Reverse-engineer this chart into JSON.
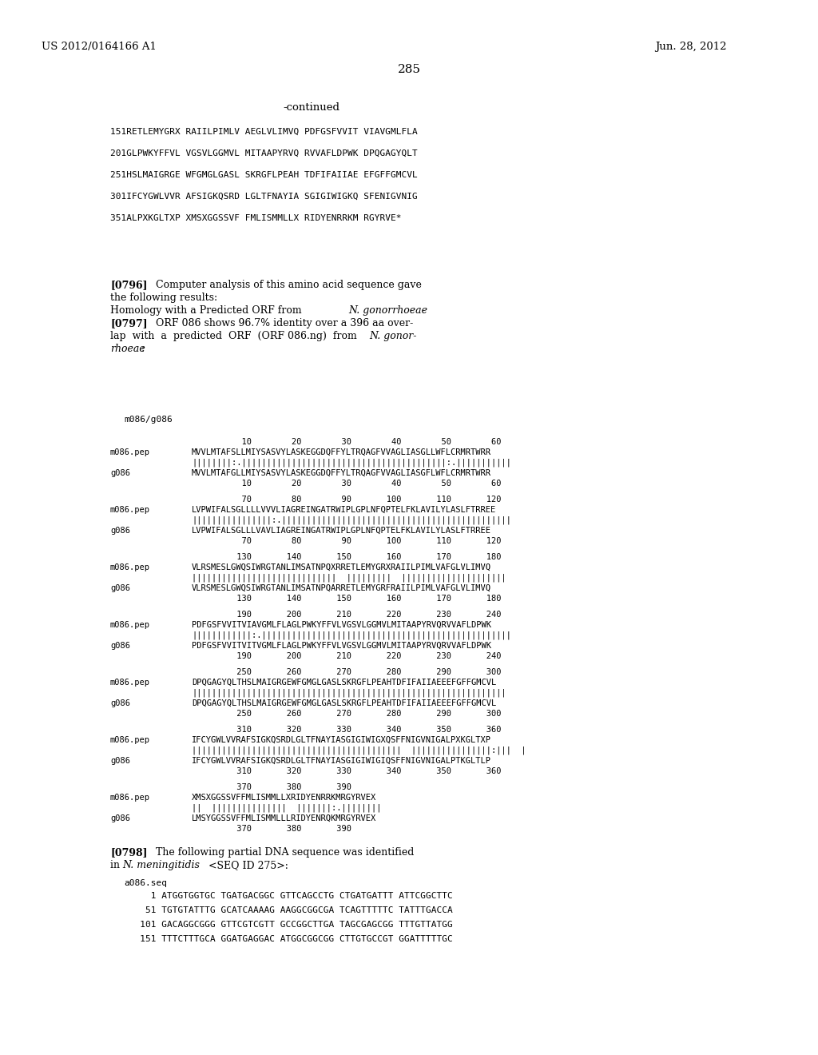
{
  "background_color": "#ffffff",
  "header_left": "US 2012/0164166 A1",
  "header_right": "Jun. 28, 2012",
  "page_number": "285",
  "continued": "-continued",
  "seq_lines": [
    "151RETLEMYGRX RAIILPIMLV AEGLVLIMVQ PDFGSFVVIT VIAVGMLFLA",
    "201GLPWKYFFVL VGSVLGGMVL MITAAPYRVQ RVVAFLDPWK DPQGAGYQLT",
    "251HSLMAIGRGE WFGMGLGASL SKRGFLPEAH TDFIFAIIAE EFGFFGMCVL",
    "301IFCYGWLVVR AFSIGKQSRD LGLTFNAYIA SGIGIWIGKQ SFENIGVNIG",
    "351ALPXKGLTXP XMSXGGSSVF FMLISMMLLX RIDYENRRKM RGYRVE*"
  ],
  "para_0796_lines": [
    {
      "text": "[0796]   Computer analysis of this amino acid sequence gave",
      "bold_prefix": "[0796]"
    },
    {
      "text": "the following results:",
      "bold_prefix": ""
    },
    {
      "text": "Homology with a Predicted ORF from N. gonorrhoeae",
      "bold_prefix": "",
      "italic_part": "N. gonorrhoeae"
    },
    {
      "text": "[0797]   ORF 086 shows 96.7% identity over a 396 aa over-",
      "bold_prefix": "[0797]"
    },
    {
      "text": "lap  with  a  predicted  ORF  (ORF 086.ng)  from  N. gonor-",
      "bold_prefix": "",
      "italic_part": "N. gonor-"
    },
    {
      "text": "rhoeae:",
      "bold_prefix": "",
      "italic_part": "rhoeae"
    }
  ],
  "align_label": "m086/g086",
  "align_blocks": [
    {
      "nums_top": "          10        20        30        40        50        60",
      "label1": "m086.pep",
      "seq1": "MVVLMTAFSLLMIYSASVYLASKEGGDQFFYLTRQAGFVVAGLIASGLLWFLCRMRTWRR",
      "match": "||||||||:.|||||||||||||||||||||||||||||||||||||||||:.|||||||||||",
      "label2": "g086",
      "seq2": "MVVLMTAFGLLMIYSASVYLASKEGGDQFFYLTRQAGFVVAGLIASGFLWFLCRMRTWRR",
      "nums_bot": "          10        20        30        40        50        60"
    },
    {
      "nums_top": "          70        80        90       100       110       120",
      "label1": "m086.pep",
      "seq1": "LVPWIFALSGLLLLVVVLIAGREINGATRWIPLGPLNFQPTELFKLAVILYLASLFTRREE",
      "match": "||||||||||||||||:.||||||||||||||||||||||||||||||||||||||||||||||",
      "label2": "g086",
      "seq2": "LVPWIFALSGLLLVAVLIAGREINGATRWIPLGPLNFQPTELFKLAVILYLASLFTRREE",
      "nums_bot": "          70        80        90       100       110       120"
    },
    {
      "nums_top": "         130       140       150       160       170       180",
      "label1": "m086.pep",
      "seq1": "VLRSMESLGWQSIWRGTANLIMSATNPQXRRETLEMYGRXRAIILPIMLVAFGLVLIMVQ",
      "match": "|||||||||||||||||||||||||||||  |||||||||  |||||||||||||||||||||",
      "label2": "g086",
      "seq2": "VLRSMESLGWQSIWRGTANLIMSATNPQARRETLEMYGRFRAIILPIMLVAFGLVLIMVQ",
      "nums_bot": "         130       140       150       160       170       180"
    },
    {
      "nums_top": "         190       200       210       220       230       240",
      "label1": "m086.pep",
      "seq1": "PDFGSFVVITVIAVGMLFLAGLPWKYFFVLVGSVLGGMVLMITAAPYRVQRVVAFLDPWK",
      "match": "||||||||||||:.||||||||||||||||||||||||||||||||||||||||||||||||||",
      "label2": "g086",
      "seq2": "PDFGSFVVITVITVGMLFLAGLPWKYFFVLVGSVLGGMVLMITAAPYRVQRVVAFLDPWK",
      "nums_bot": "         190       200       210       220       230       240"
    },
    {
      "nums_top": "         250       260       270       280       290       300",
      "label1": "m086.pep",
      "seq1": "DPQGAGYQLTHSLMAIGRGEWFGMGLGASLSKRGFLPEAHTDFIFAIIAEEEFGFFGMCVL",
      "match": "|||||||||||||||||||||||||||||||||||||||||||||||||||||||||||||||",
      "label2": "g086",
      "seq2": "DPQGAGYQLTHSLMAIGRGEWFGMGLGASLSKRGFLPEAHTDFIFAIIAEEEFGFFGMCVL",
      "nums_bot": "         250       260       270       280       290       300"
    },
    {
      "nums_top": "         310       320       330       340       350       360",
      "label1": "m086.pep",
      "seq1": "IFCYGWLVVRAFSIGKQSRDLGLTFNAYIASGIGIWIGXQSFFNIGVNIGALPXKGLTXP",
      "match": "||||||||||||||||||||||||||||||||||||||||||  ||||||||||||||||:|||  |",
      "label2": "g086",
      "seq2": "IFCYGWLVVRAFSIGKQSRDLGLTFNAYIASGIGIWIGIQSFFNIGVNIGALPTKGLTLP",
      "nums_bot": "         310       320       330       340       350       360"
    },
    {
      "nums_top": "         370       380       390",
      "label1": "m086.pep",
      "seq1": "XMSXGGSSVFFMLISMMLLXRIDYENRRKMRGYRVEX",
      "match": "||  |||||||||||||||  |||||||:.||||||||",
      "label2": "g086",
      "seq2": "LMSYGGSSVFFMLISMMLLLRIDYENRQKMRGYRVEX",
      "nums_bot": "         370       380       390"
    }
  ],
  "para_0798": "[0798]   The following partial DNA sequence was identified",
  "para_0798b": "in N. meningitidis <SEQ ID 275>:",
  "dna_label": "a086.seq",
  "dna_lines": [
    "     1 ATGGTGGTGC TGATGACGGC GTTCAGCCTG CTGATGATTT ATTCGGCTTC",
    "    51 TGTGTATTTG GCATCAAAAG AAGGCGGCGA TCAGTTTTTC TATTTGACCA",
    "   101 GACAGGCGGG GTTCGTCGTT GCCGGCTTGA TAGCGAGCGG TTTGTTATGG",
    "   151 TTTCTTTGCA GGATGAGGAC ATGGCGGCGG CTTGTGCCGT GGATTTTTGC"
  ]
}
